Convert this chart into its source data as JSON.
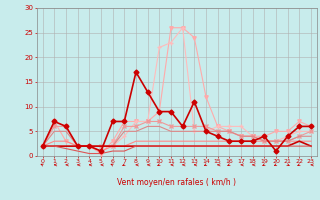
{
  "title": "",
  "xlabel": "Vent moyen/en rafales ( km/h )",
  "ylabel": "",
  "xlim": [
    -0.5,
    23.5
  ],
  "ylim": [
    0,
    30
  ],
  "yticks": [
    0,
    5,
    10,
    15,
    20,
    25,
    30
  ],
  "xticks": [
    0,
    1,
    2,
    3,
    4,
    5,
    6,
    7,
    8,
    9,
    10,
    11,
    12,
    13,
    14,
    15,
    16,
    17,
    18,
    19,
    20,
    21,
    22,
    23
  ],
  "bg_color": "#c8ecec",
  "grid_color": "#b0b0b0",
  "series": [
    {
      "x": [
        0,
        1,
        2,
        3,
        4,
        5,
        6,
        7,
        8,
        9,
        10,
        11,
        12,
        13,
        14,
        15,
        16,
        17,
        18,
        19,
        20,
        21,
        22,
        23
      ],
      "y": [
        2,
        7,
        6,
        2,
        2,
        1,
        7,
        7,
        17,
        13,
        9,
        9,
        6,
        11,
        5,
        4,
        3,
        3,
        3,
        4,
        1,
        4,
        6,
        6
      ],
      "color": "#cc0000",
      "lw": 1.2,
      "marker": "D",
      "ms": 2.5,
      "zorder": 5
    },
    {
      "x": [
        0,
        1,
        2,
        3,
        4,
        5,
        6,
        7,
        8,
        9,
        10,
        11,
        12,
        13,
        14,
        15,
        16,
        17,
        18,
        19,
        20,
        21,
        22,
        23
      ],
      "y": [
        2,
        7,
        3,
        2,
        2,
        0.5,
        3,
        7,
        7,
        7,
        9,
        26,
        26,
        24,
        12,
        6,
        5,
        4,
        4,
        4,
        5,
        5,
        7,
        6
      ],
      "color": "#ffaaaa",
      "lw": 0.8,
      "marker": "v",
      "ms": 2.5,
      "zorder": 3
    },
    {
      "x": [
        0,
        1,
        2,
        3,
        4,
        5,
        6,
        7,
        8,
        9,
        10,
        11,
        12,
        13,
        14,
        15,
        16,
        17,
        18,
        19,
        20,
        21,
        22,
        23
      ],
      "y": [
        2,
        7,
        6,
        2,
        2,
        1,
        2,
        4,
        7,
        7,
        22,
        23,
        26,
        5,
        5,
        6,
        6,
        6,
        4,
        3,
        3,
        4,
        5,
        5
      ],
      "color": "#ffbbbb",
      "lw": 0.8,
      "marker": "+",
      "ms": 3,
      "zorder": 3
    },
    {
      "x": [
        0,
        1,
        2,
        3,
        4,
        5,
        6,
        7,
        8,
        9,
        10,
        11,
        12,
        13,
        14,
        15,
        16,
        17,
        18,
        19,
        20,
        21,
        22,
        23
      ],
      "y": [
        2,
        6,
        6,
        2,
        2,
        2,
        2,
        6,
        6,
        7,
        7,
        6,
        6,
        6,
        6,
        5,
        5,
        4,
        4,
        3,
        3,
        3,
        4,
        5
      ],
      "color": "#ee9999",
      "lw": 0.8,
      "marker": "x",
      "ms": 2.5,
      "zorder": 3
    },
    {
      "x": [
        0,
        1,
        2,
        3,
        4,
        5,
        6,
        7,
        8,
        9,
        10,
        11,
        12,
        13,
        14,
        15,
        16,
        17,
        18,
        19,
        20,
        21,
        22,
        23
      ],
      "y": [
        2,
        2,
        2,
        2,
        2,
        2,
        2,
        2,
        2,
        2,
        2,
        2,
        2,
        2,
        2,
        2,
        2,
        2,
        2,
        2,
        2,
        2,
        3,
        2
      ],
      "color": "#cc0000",
      "lw": 1.2,
      "marker": null,
      "ms": 0,
      "zorder": 4
    },
    {
      "x": [
        0,
        1,
        2,
        3,
        4,
        5,
        6,
        7,
        8,
        9,
        10,
        11,
        12,
        13,
        14,
        15,
        16,
        17,
        18,
        19,
        20,
        21,
        22,
        23
      ],
      "y": [
        2,
        2,
        1.5,
        1,
        0.5,
        0.5,
        1,
        1,
        2,
        2,
        2,
        2,
        2,
        2,
        2,
        2,
        2,
        2,
        2,
        2,
        2,
        2,
        2,
        2
      ],
      "color": "#dd5555",
      "lw": 0.8,
      "marker": null,
      "ms": 0,
      "zorder": 4
    },
    {
      "x": [
        0,
        1,
        2,
        3,
        4,
        5,
        6,
        7,
        8,
        9,
        10,
        11,
        12,
        13,
        14,
        15,
        16,
        17,
        18,
        19,
        20,
        21,
        22,
        23
      ],
      "y": [
        2,
        3,
        3,
        2,
        2,
        1,
        2,
        2,
        3,
        3,
        3,
        3,
        3,
        3,
        3,
        3,
        3,
        3,
        3,
        3,
        3,
        3,
        3,
        3
      ],
      "color": "#ff8888",
      "lw": 0.8,
      "marker": null,
      "ms": 0,
      "zorder": 3
    },
    {
      "x": [
        0,
        1,
        2,
        3,
        4,
        5,
        6,
        7,
        8,
        9,
        10,
        11,
        12,
        13,
        14,
        15,
        16,
        17,
        18,
        19,
        20,
        21,
        22,
        23
      ],
      "y": [
        2,
        5,
        5,
        2,
        2,
        2,
        2,
        5,
        5,
        6,
        6,
        5,
        5,
        5,
        5,
        5,
        5,
        4,
        4,
        3,
        3,
        3,
        4,
        4
      ],
      "color": "#dd8888",
      "lw": 0.8,
      "marker": null,
      "ms": 0,
      "zorder": 3
    }
  ],
  "wind_arrow_color": "#cc0000",
  "arrow_angles": [
    225,
    270,
    270,
    270,
    270,
    270,
    225,
    315,
    270,
    270,
    315,
    270,
    270,
    270,
    315,
    270,
    315,
    270,
    270,
    315,
    315,
    45,
    315,
    270
  ]
}
